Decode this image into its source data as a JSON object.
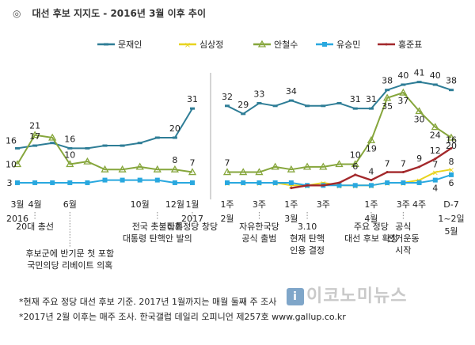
{
  "title": {
    "mark": "◎",
    "text": "대선 후보 지지도 - 2016년 3월 이후 추이"
  },
  "footnotes": [
    "*현재 주요 정당 대선 후보 기준. 2017년 1월까지는 매월 둘째 주 조사",
    "*2017년 2월 이후는 매주 조사. 한국갤럽 데일리 오피니언 제257호 www.gallup.co.kr"
  ],
  "watermark": {
    "logo": "i",
    "text": "이코노미뉴스"
  },
  "colors": {
    "문재인": "#2e7d96",
    "심상정": "#e8d31e",
    "안철수": "#86a63c",
    "유승민": "#29a8df",
    "홍준표": "#a3282b"
  },
  "chart_data": {
    "type": "line",
    "legend": [
      "문재인",
      "심상정",
      "안철수",
      "유승민",
      "홍준표"
    ],
    "legend_position": "top",
    "grid": false,
    "panels": [
      {
        "x": [
          "2016-03",
          "2016-04",
          "2016-05",
          "2016-06",
          "2016-07",
          "2016-08",
          "2016-09",
          "2016-10",
          "2016-11",
          "2016-12",
          "2017-01"
        ],
        "series": [
          {
            "name": "문재인",
            "values": [
              16,
              17,
              18,
              16,
              16,
              17,
              17,
              18,
              20,
              20,
              31
            ]
          },
          {
            "name": "안철수",
            "values": [
              10,
              21,
              20,
              10,
              11,
              8,
              8,
              9,
              8,
              8,
              7
            ]
          },
          {
            "name": "유승민",
            "values": [
              3,
              3,
              3,
              3,
              3,
              4,
              4,
              4,
              4,
              3,
              3
            ]
          }
        ],
        "tick_labels": [
          {
            "x": "2016-03",
            "text": "3월"
          },
          {
            "x": "2016-04",
            "text": "4월"
          },
          {
            "x": "2016-06",
            "text": "6월"
          },
          {
            "x": "2016-10",
            "text": "10월"
          },
          {
            "x": "2016-12",
            "text": "12월"
          },
          {
            "x": "2017-01",
            "text": "1월"
          }
        ],
        "year_labels": [
          {
            "x": "2016-03",
            "text": "2016"
          },
          {
            "x": "2017-01",
            "text": "2017"
          }
        ],
        "data_labels": [
          {
            "series": "문재인",
            "index": 0,
            "text": "16"
          },
          {
            "series": "문재인",
            "index": 1,
            "text": "17"
          },
          {
            "series": "문재인",
            "index": 3,
            "text": "16"
          },
          {
            "series": "문재인",
            "index": 9,
            "text": "20"
          },
          {
            "series": "문재인",
            "index": 10,
            "text": "31"
          },
          {
            "series": "안철수",
            "index": 0,
            "text": "10"
          },
          {
            "series": "안철수",
            "index": 1,
            "text": "21"
          },
          {
            "series": "안철수",
            "index": 3,
            "text": "10"
          },
          {
            "series": "안철수",
            "index": 9,
            "text": "8"
          },
          {
            "series": "안철수",
            "index": 10,
            "text": "7"
          },
          {
            "series": "유승민",
            "index": 0,
            "text": "3"
          }
        ]
      },
      {
        "x": [
          "2017-02 1주",
          "2017-02 2주",
          "2017-02 3주",
          "2017-02 4주",
          "2017-03 1주",
          "2017-03 2주",
          "2017-03 3주",
          "2017-03 4주",
          "2017-03 5주",
          "2017-04 1주",
          "2017-04 2주",
          "2017-04 3주",
          "2017-04 4주",
          "2017-05 1주",
          "2017-05 1~2일"
        ],
        "series": [
          {
            "name": "문재인",
            "values": [
              32,
              29,
              33,
              32,
              34,
              32,
              32,
              33,
              31,
              31,
              38,
              40,
              41,
              40,
              38
            ]
          },
          {
            "name": "심상정",
            "values": [
              3,
              3,
              3,
              3,
              2,
              2,
              3,
              2,
              2,
              2,
              3,
              3,
              4,
              7,
              8
            ]
          },
          {
            "name": "안철수",
            "values": [
              7,
              7,
              7,
              9,
              8,
              9,
              9,
              10,
              10,
              19,
              35,
              37,
              30,
              24,
              20
            ]
          },
          {
            "name": "유승민",
            "values": [
              3,
              3,
              3,
              3,
              3,
              2,
              2,
              2,
              2,
              2,
              3,
              3,
              3,
              4,
              6
            ]
          },
          {
            "name": "홍준표",
            "values": [
              0,
              0,
              0,
              0,
              1,
              2,
              2,
              3,
              6,
              4,
              7,
              7,
              9,
              12,
              16
            ]
          }
        ],
        "tick_labels": [
          {
            "x": "2017-02 1주",
            "text": "1주"
          },
          {
            "x": "2017-02 3주",
            "text": "3주"
          },
          {
            "x": "2017-03 1주",
            "text": "1주"
          },
          {
            "x": "2017-03 3주",
            "text": "3주"
          },
          {
            "x": "2017-04 1주",
            "text": "1주"
          },
          {
            "x": "2017-04 3주",
            "text": "3주"
          },
          {
            "x": "2017-04 4주",
            "text": "4주"
          },
          {
            "x": "2017-05 1~2일",
            "text": "D-7"
          }
        ],
        "month_labels": [
          {
            "x": "2017-02 1주",
            "text": "2월"
          },
          {
            "x": "2017-03 1주",
            "text": "3월"
          },
          {
            "x": "2017-04 1주",
            "text": "4월"
          },
          {
            "x": "2017-05 1~2일",
            "text": "1~2일"
          },
          {
            "x": "2017-05 1~2일",
            "text": "5월"
          }
        ],
        "data_labels": [
          {
            "series": "문재인",
            "index": 0,
            "text": "32"
          },
          {
            "series": "문재인",
            "index": 1,
            "text": "29"
          },
          {
            "series": "문재인",
            "index": 2,
            "text": "33"
          },
          {
            "series": "문재인",
            "index": 4,
            "text": "34"
          },
          {
            "series": "문재인",
            "index": 8,
            "text": "31"
          },
          {
            "series": "문재인",
            "index": 9,
            "text": "31"
          },
          {
            "series": "문재인",
            "index": 10,
            "text": "38"
          },
          {
            "series": "문재인",
            "index": 11,
            "text": "40"
          },
          {
            "series": "문재인",
            "index": 12,
            "text": "41"
          },
          {
            "series": "문재인",
            "index": 13,
            "text": "40"
          },
          {
            "series": "문재인",
            "index": 14,
            "text": "38"
          },
          {
            "series": "안철수",
            "index": 0,
            "text": "7"
          },
          {
            "series": "안철수",
            "index": 8,
            "text": "10"
          },
          {
            "series": "안철수",
            "index": 9,
            "text": "19"
          },
          {
            "series": "안철수",
            "index": 10,
            "text": "35"
          },
          {
            "series": "안철수",
            "index": 11,
            "text": "37"
          },
          {
            "series": "안철수",
            "index": 12,
            "text": "30"
          },
          {
            "series": "안철수",
            "index": 13,
            "text": "24"
          },
          {
            "series": "안철수",
            "index": 14,
            "text": "20"
          },
          {
            "series": "홍준표",
            "index": 8,
            "text": "6"
          },
          {
            "series": "홍준표",
            "index": 9,
            "text": "4"
          },
          {
            "series": "홍준표",
            "index": 10,
            "text": "7"
          },
          {
            "series": "홍준표",
            "index": 11,
            "text": "7"
          },
          {
            "series": "홍준표",
            "index": 12,
            "text": "9"
          },
          {
            "series": "홍준표",
            "index": 13,
            "text": "12"
          },
          {
            "series": "홍준표",
            "index": 14,
            "text": "16"
          },
          {
            "series": "심상정",
            "index": 13,
            "text": "7"
          },
          {
            "series": "심상정",
            "index": 14,
            "text": "8"
          },
          {
            "series": "유승민",
            "index": 13,
            "text": "4"
          },
          {
            "series": "유승민",
            "index": 14,
            "text": "6"
          }
        ]
      }
    ],
    "annotations": [
      {
        "panel": 0,
        "x": "2016-04",
        "lines": [
          "20대 총선"
        ]
      },
      {
        "panel": 0,
        "x": "2016-06",
        "lines": [
          "후보군에 반기문 첫 포함",
          "국민의당 리베이트 의혹"
        ]
      },
      {
        "panel": 0,
        "x": "2016-11",
        "lines": [
          "전국 촛불집회",
          "대통령 탄핵안 발의"
        ]
      },
      {
        "panel": 0,
        "x": "2017-01",
        "lines": [
          "바른정당 창당"
        ]
      },
      {
        "panel": 1,
        "x": "2017-02 3주",
        "lines": [
          "자유한국당",
          "공식 출범"
        ]
      },
      {
        "panel": 1,
        "x": "2017-03 2주",
        "lines": [
          "3.10",
          "현재 탄핵",
          "인용 결정"
        ]
      },
      {
        "panel": 1,
        "x": "2017-04 1주",
        "lines": [
          "주요 정당",
          "대선 후보 확정"
        ]
      },
      {
        "panel": 1,
        "x": "2017-04 3주",
        "lines": [
          "공식",
          "선거운동",
          "시작"
        ]
      }
    ]
  }
}
